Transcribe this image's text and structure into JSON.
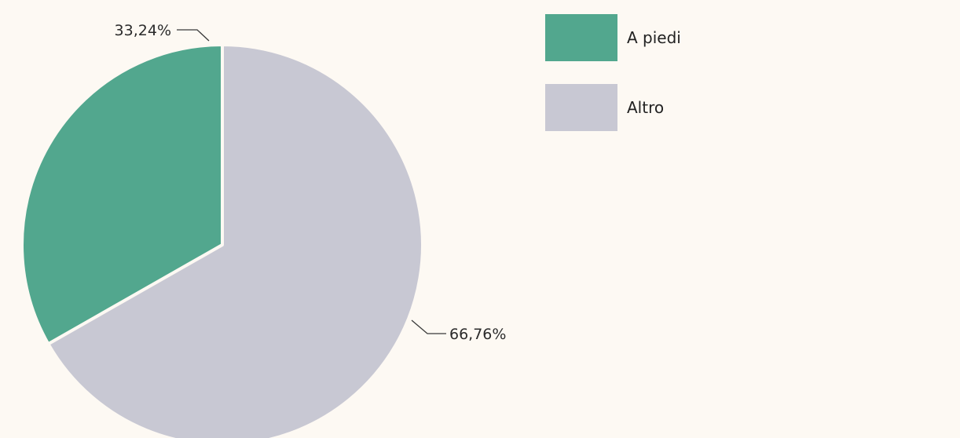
{
  "chart_data": {
    "type": "pie",
    "title": "",
    "slices": [
      {
        "name": "A piedi",
        "value": 33.24,
        "label": "33,24%",
        "color": "#52a78e"
      },
      {
        "name": "Altro",
        "value": 66.76,
        "label": "66,76%",
        "color": "#c8c8d3"
      }
    ],
    "start_angle_deg": 0,
    "direction": "counterclockwise",
    "legend_position": "top-right"
  },
  "legend": {
    "items": [
      {
        "label": "A piedi",
        "color": "#52a78e"
      },
      {
        "label": "Altro",
        "color": "#c8c8d3"
      }
    ]
  }
}
